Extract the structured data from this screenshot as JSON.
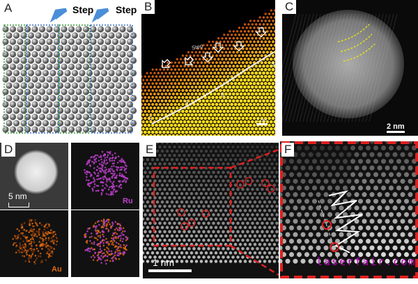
{
  "panels": {
    "a": {
      "label": "A",
      "step_labels": [
        "Step",
        "Step"
      ]
    },
    "b": {
      "label": "B",
      "step_text": "Step",
      "site_labels": [
        "S",
        "S",
        "S",
        "S"
      ],
      "scale_bar": "1 nm"
    },
    "c": {
      "label": "C",
      "scale_bar": "2 nm"
    },
    "d": {
      "label": "D",
      "scale_bar": "5 nm",
      "channels": [
        "Ru",
        "Au"
      ]
    },
    "e": {
      "label": "E",
      "scale_bar": "1 nm"
    },
    "f": {
      "label": "F",
      "watermark": "laserfair.com"
    }
  },
  "colors": {
    "step_arrow": "#4a8fd8",
    "ru": "#c040d0",
    "au": "#e06a10",
    "highlight": "#e02020",
    "watermark": "#b000b0"
  }
}
